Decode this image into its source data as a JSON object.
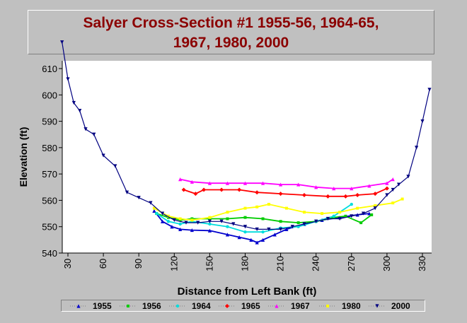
{
  "chart_data": {
    "type": "line",
    "title_lines": [
      "Salyer Cross-Section #1 1955-56, 1964-65,",
      "1967, 1980, 2000"
    ],
    "xlabel": "Distance from Left Bank (ft)",
    "ylabel": "Elevation (ft)",
    "xlim": [
      30,
      337
    ],
    "ylim": [
      540,
      612
    ],
    "xticks": [
      30,
      60,
      90,
      120,
      150,
      180,
      210,
      240,
      270,
      300,
      330
    ],
    "yticks": [
      540,
      550,
      560,
      570,
      580,
      590,
      600,
      610
    ],
    "grid": false,
    "legend_position": "bottom",
    "series": [
      {
        "name": "1955",
        "color": "#0000cc",
        "marker": "triangle-up",
        "x": [
          103,
          110,
          118,
          125,
          135,
          150,
          165,
          175,
          185,
          190,
          195,
          205,
          215,
          230,
          245,
          260,
          275,
          285
        ],
        "y": [
          556,
          552,
          550,
          549,
          548.7,
          548.5,
          547,
          546,
          545,
          544,
          545,
          547,
          549,
          551,
          552.5,
          553.5,
          554.5,
          555
        ]
      },
      {
        "name": "1956",
        "color": "#00cc00",
        "marker": "square",
        "x": [
          105,
          115,
          125,
          135,
          150,
          165,
          180,
          195,
          210,
          225,
          240,
          255,
          265,
          278,
          287
        ],
        "y": [
          555,
          553.5,
          552.5,
          553,
          553,
          553,
          553.5,
          553,
          552,
          551.5,
          552,
          553.5,
          554,
          551.5,
          554.5
        ]
      },
      {
        "name": "1964",
        "color": "#00dddd",
        "marker": "circle",
        "x": [
          105,
          115,
          125,
          135,
          150,
          165,
          180,
          195,
          210,
          225,
          240,
          255,
          270
        ],
        "y": [
          555,
          552,
          551,
          552,
          551,
          550,
          548,
          548,
          549.5,
          550,
          552,
          554,
          558.5
        ]
      },
      {
        "name": "1965",
        "color": "#ff0000",
        "marker": "diamond",
        "x": [
          128,
          138,
          145,
          160,
          175,
          190,
          210,
          230,
          250,
          265,
          275,
          290,
          300
        ],
        "y": [
          564,
          562.5,
          564,
          564,
          564,
          563,
          562.5,
          562,
          561.5,
          561.5,
          562,
          562.5,
          564.5
        ]
      },
      {
        "name": "1967",
        "color": "#ff00ff",
        "marker": "triangle-up",
        "x": [
          125,
          135,
          150,
          165,
          180,
          195,
          210,
          225,
          240,
          255,
          270,
          285,
          300,
          305
        ],
        "y": [
          568,
          567,
          566.5,
          566.5,
          566.5,
          566.5,
          566,
          566,
          565,
          564.5,
          564.5,
          565.5,
          566.5,
          568
        ]
      },
      {
        "name": "1980",
        "color": "#ffff00",
        "marker": "square",
        "x": [
          103,
          115,
          125,
          135,
          150,
          165,
          180,
          190,
          200,
          215,
          230,
          245,
          260,
          275,
          290,
          305,
          313
        ],
        "y": [
          557,
          554,
          553,
          552.5,
          553.5,
          555.5,
          557,
          557.5,
          558.5,
          557,
          555.5,
          555,
          555.5,
          557,
          558,
          559,
          560.5
        ]
      },
      {
        "name": "2000",
        "color": "#000080",
        "marker": "triangle-down",
        "x": [
          25,
          30,
          35,
          40,
          45,
          52,
          60,
          70,
          80,
          90,
          100,
          110,
          120,
          130,
          140,
          150,
          160,
          170,
          180,
          190,
          200,
          210,
          220,
          230,
          240,
          250,
          260,
          270,
          280,
          290,
          300,
          305,
          310,
          318,
          325,
          330,
          336
        ],
        "y": [
          620,
          606,
          597,
          594,
          587,
          585,
          577,
          573,
          563,
          561,
          559,
          555,
          552.5,
          551.5,
          551.5,
          552,
          552,
          551,
          550,
          549,
          549,
          549,
          550,
          551,
          552,
          553,
          553,
          554,
          555,
          557,
          562,
          564,
          566,
          569,
          580,
          590,
          602
        ]
      }
    ]
  }
}
